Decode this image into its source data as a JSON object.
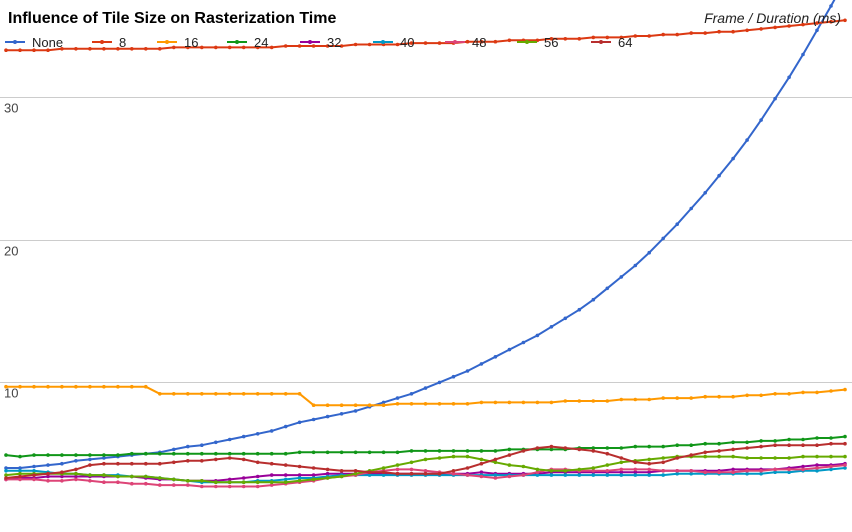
{
  "chart_data": {
    "type": "line",
    "title": "Influence of Tile Size on Rasterization Time",
    "subtitle": "Frame / Duration (ms)",
    "xlabel": "",
    "ylabel": "",
    "xlim": [
      1,
      61
    ],
    "ylim": [
      0,
      35
    ],
    "yticks": [
      10,
      20,
      30
    ],
    "grid": true,
    "legend_position": "top",
    "x": [
      1,
      2,
      3,
      4,
      5,
      6,
      7,
      8,
      9,
      10,
      11,
      12,
      13,
      14,
      15,
      16,
      17,
      18,
      19,
      20,
      21,
      22,
      23,
      24,
      25,
      26,
      27,
      28,
      29,
      30,
      31,
      32,
      33,
      34,
      35,
      36,
      37,
      38,
      39,
      40,
      41,
      42,
      43,
      44,
      45,
      46,
      47,
      48,
      49,
      50,
      51,
      52,
      53,
      54,
      55,
      56,
      57,
      58,
      59,
      60,
      61
    ],
    "series": [
      {
        "name": "None",
        "color": "#3366cc",
        "values": [
          4.0,
          4.0,
          4.1,
          4.2,
          4.3,
          4.5,
          4.6,
          4.7,
          4.8,
          4.9,
          5.0,
          5.1,
          5.3,
          5.5,
          5.6,
          5.8,
          6.0,
          6.2,
          6.4,
          6.6,
          6.9,
          7.2,
          7.4,
          7.6,
          7.8,
          8.0,
          8.3,
          8.6,
          8.9,
          9.2,
          9.6,
          10.0,
          10.4,
          10.8,
          11.3,
          11.8,
          12.3,
          12.8,
          13.3,
          13.9,
          14.5,
          15.1,
          15.8,
          16.6,
          17.4,
          18.2,
          19.1,
          20.1,
          21.1,
          22.2,
          23.3,
          24.5,
          25.7,
          27.0,
          28.4,
          29.9,
          31.4,
          33.0,
          34.7,
          36.4,
          38.2
        ]
      },
      {
        "name": "8",
        "color": "#dc3912",
        "values": [
          33.3,
          33.3,
          33.3,
          33.3,
          33.4,
          33.4,
          33.4,
          33.4,
          33.4,
          33.4,
          33.4,
          33.4,
          33.5,
          33.5,
          33.5,
          33.5,
          33.5,
          33.5,
          33.5,
          33.5,
          33.6,
          33.6,
          33.6,
          33.6,
          33.6,
          33.7,
          33.7,
          33.7,
          33.7,
          33.8,
          33.8,
          33.8,
          33.8,
          33.9,
          33.9,
          33.9,
          34.0,
          34.0,
          34.0,
          34.1,
          34.1,
          34.1,
          34.2,
          34.2,
          34.2,
          34.3,
          34.3,
          34.4,
          34.4,
          34.5,
          34.5,
          34.6,
          34.6,
          34.7,
          34.8,
          34.9,
          35.0,
          35.1,
          35.2,
          35.3,
          35.4
        ]
      },
      {
        "name": "16",
        "color": "#ff9900",
        "values": [
          9.7,
          9.7,
          9.7,
          9.7,
          9.7,
          9.7,
          9.7,
          9.7,
          9.7,
          9.7,
          9.7,
          9.2,
          9.2,
          9.2,
          9.2,
          9.2,
          9.2,
          9.2,
          9.2,
          9.2,
          9.2,
          9.2,
          8.4,
          8.4,
          8.4,
          8.4,
          8.4,
          8.4,
          8.5,
          8.5,
          8.5,
          8.5,
          8.5,
          8.5,
          8.6,
          8.6,
          8.6,
          8.6,
          8.6,
          8.6,
          8.7,
          8.7,
          8.7,
          8.7,
          8.8,
          8.8,
          8.8,
          8.9,
          8.9,
          8.9,
          9.0,
          9.0,
          9.0,
          9.1,
          9.1,
          9.2,
          9.2,
          9.3,
          9.3,
          9.4,
          9.5
        ]
      },
      {
        "name": "24",
        "color": "#109618",
        "values": [
          4.9,
          4.8,
          4.9,
          4.9,
          4.9,
          4.9,
          4.9,
          4.9,
          4.9,
          5.0,
          5.0,
          5.0,
          5.0,
          5.0,
          5.0,
          5.0,
          5.0,
          5.0,
          5.0,
          5.0,
          5.0,
          5.1,
          5.1,
          5.1,
          5.1,
          5.1,
          5.1,
          5.1,
          5.1,
          5.2,
          5.2,
          5.2,
          5.2,
          5.2,
          5.2,
          5.2,
          5.3,
          5.3,
          5.3,
          5.3,
          5.3,
          5.4,
          5.4,
          5.4,
          5.4,
          5.5,
          5.5,
          5.5,
          5.6,
          5.6,
          5.7,
          5.7,
          5.8,
          5.8,
          5.9,
          5.9,
          6.0,
          6.0,
          6.1,
          6.1,
          6.2
        ]
      },
      {
        "name": "32",
        "color": "#990099",
        "values": [
          3.2,
          3.3,
          3.3,
          3.4,
          3.4,
          3.4,
          3.4,
          3.4,
          3.4,
          3.4,
          3.3,
          3.2,
          3.2,
          3.1,
          3.1,
          3.1,
          3.2,
          3.3,
          3.4,
          3.5,
          3.5,
          3.5,
          3.5,
          3.6,
          3.6,
          3.6,
          3.6,
          3.6,
          3.6,
          3.6,
          3.6,
          3.6,
          3.6,
          3.6,
          3.7,
          3.6,
          3.6,
          3.6,
          3.6,
          3.7,
          3.7,
          3.7,
          3.7,
          3.7,
          3.7,
          3.7,
          3.7,
          3.8,
          3.8,
          3.8,
          3.8,
          3.8,
          3.9,
          3.9,
          3.9,
          3.9,
          4.0,
          4.1,
          4.2,
          4.2,
          4.3
        ]
      },
      {
        "name": "40",
        "color": "#0099c6",
        "values": [
          3.8,
          3.8,
          3.8,
          3.7,
          3.6,
          3.6,
          3.5,
          3.5,
          3.5,
          3.4,
          3.4,
          3.3,
          3.2,
          3.1,
          3.0,
          3.0,
          3.0,
          3.0,
          3.1,
          3.1,
          3.2,
          3.3,
          3.3,
          3.4,
          3.5,
          3.5,
          3.5,
          3.5,
          3.5,
          3.5,
          3.5,
          3.5,
          3.5,
          3.5,
          3.5,
          3.5,
          3.5,
          3.5,
          3.5,
          3.5,
          3.5,
          3.5,
          3.5,
          3.5,
          3.5,
          3.5,
          3.5,
          3.5,
          3.6,
          3.6,
          3.6,
          3.6,
          3.6,
          3.6,
          3.6,
          3.7,
          3.7,
          3.8,
          3.8,
          3.9,
          4.0
        ]
      },
      {
        "name": "48",
        "color": "#dd4477",
        "values": [
          3.2,
          3.2,
          3.2,
          3.1,
          3.1,
          3.2,
          3.1,
          3.0,
          3.0,
          2.9,
          2.9,
          2.8,
          2.8,
          2.8,
          2.7,
          2.7,
          2.7,
          2.7,
          2.7,
          2.8,
          2.9,
          3.0,
          3.1,
          3.3,
          3.4,
          3.5,
          3.7,
          3.8,
          3.9,
          3.9,
          3.8,
          3.7,
          3.6,
          3.5,
          3.4,
          3.3,
          3.4,
          3.5,
          3.7,
          3.9,
          3.9,
          3.8,
          3.8,
          3.8,
          3.9,
          3.9,
          3.9,
          3.8,
          3.8,
          3.8,
          3.7,
          3.7,
          3.7,
          3.8,
          3.8,
          3.9,
          3.9,
          3.9,
          4.0,
          4.1,
          4.2
        ]
      },
      {
        "name": "56",
        "color": "#66aa00",
        "values": [
          3.5,
          3.6,
          3.6,
          3.6,
          3.6,
          3.6,
          3.5,
          3.5,
          3.4,
          3.4,
          3.4,
          3.3,
          3.2,
          3.1,
          3.1,
          3.0,
          3.0,
          3.0,
          3.0,
          3.0,
          3.0,
          3.1,
          3.2,
          3.3,
          3.4,
          3.6,
          3.8,
          4.0,
          4.2,
          4.4,
          4.6,
          4.7,
          4.8,
          4.8,
          4.6,
          4.4,
          4.2,
          4.1,
          3.9,
          3.8,
          3.8,
          3.9,
          4.0,
          4.2,
          4.4,
          4.5,
          4.6,
          4.7,
          4.8,
          4.8,
          4.8,
          4.8,
          4.8,
          4.7,
          4.7,
          4.7,
          4.7,
          4.8,
          4.8,
          4.8,
          4.8
        ]
      },
      {
        "name": "64",
        "color": "#b82e2e",
        "values": [
          3.3,
          3.4,
          3.5,
          3.6,
          3.7,
          3.9,
          4.2,
          4.3,
          4.3,
          4.3,
          4.3,
          4.3,
          4.4,
          4.5,
          4.5,
          4.6,
          4.7,
          4.6,
          4.4,
          4.3,
          4.2,
          4.1,
          4.0,
          3.9,
          3.8,
          3.8,
          3.7,
          3.7,
          3.6,
          3.6,
          3.6,
          3.6,
          3.8,
          4.0,
          4.3,
          4.6,
          4.9,
          5.2,
          5.4,
          5.5,
          5.4,
          5.3,
          5.2,
          5.0,
          4.7,
          4.4,
          4.3,
          4.4,
          4.7,
          4.9,
          5.1,
          5.2,
          5.3,
          5.4,
          5.5,
          5.6,
          5.6,
          5.6,
          5.6,
          5.7,
          5.7
        ]
      }
    ]
  }
}
